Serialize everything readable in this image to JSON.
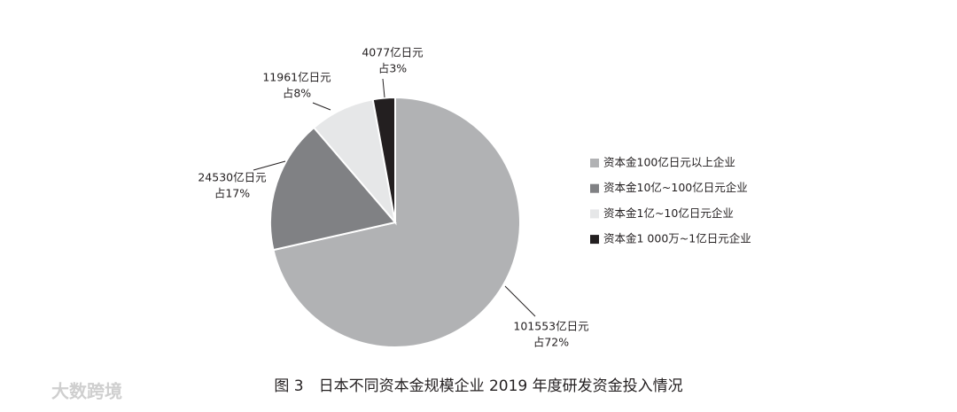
{
  "chart_data": {
    "type": "pie",
    "title": "图 3　日本不同资本金规模企业 2019 年度研发资金投入情况",
    "categories": [
      "资本金100亿日元以上企业",
      "资本金10亿~100亿日元企业",
      "资本金1亿~10亿日元企业",
      "资本金1 000万~1亿日元企业"
    ],
    "values": [
      101553,
      24530,
      11961,
      4077
    ],
    "value_labels": [
      "101553亿日元",
      "24530亿日元",
      "11961亿日元",
      "4077亿日元"
    ],
    "share_labels": [
      "占72%",
      "占17%",
      "占8%",
      "占3%"
    ],
    "colors": [
      "#b1b2b4",
      "#808184",
      "#e6e7e8",
      "#231f20"
    ],
    "legend": "right"
  },
  "watermark": "大数跨境"
}
